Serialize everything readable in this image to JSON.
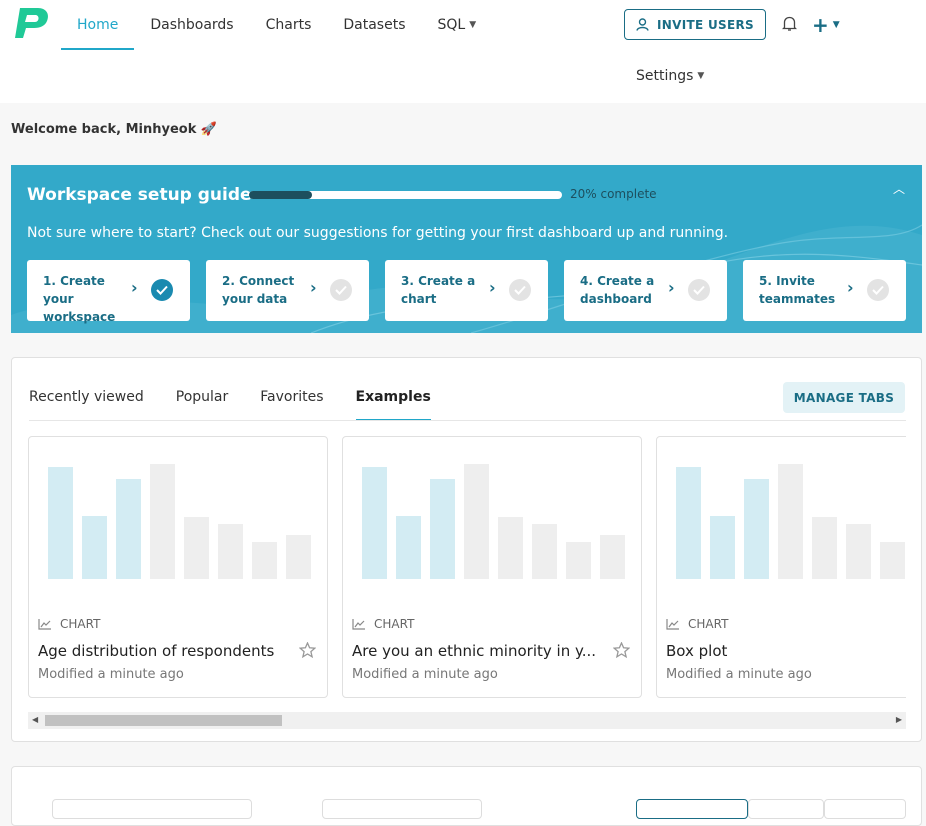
{
  "colors": {
    "accent": "#20a7c9",
    "primary_dark": "#1a6d85",
    "guide_bg": "#33a9c9"
  },
  "nav": {
    "items": [
      {
        "label": "Home",
        "active": true
      },
      {
        "label": "Dashboards"
      },
      {
        "label": "Charts"
      },
      {
        "label": "Datasets"
      },
      {
        "label": "SQL"
      }
    ]
  },
  "header": {
    "invite_label": "INVITE USERS",
    "settings_label": "Settings",
    "plus_label": "+"
  },
  "welcome": "Welcome back, Minhyeok 🚀",
  "guide": {
    "title": "Workspace setup guide",
    "progress": 0.2,
    "progress_label": "20% complete",
    "subtitle": "Not sure where to start? Check out our suggestions for getting your first dashboard up and running.",
    "steps": [
      {
        "label": "1. Create your workspace",
        "done": true
      },
      {
        "label": "2. Connect your data",
        "done": false
      },
      {
        "label": "3. Create a chart",
        "done": false
      },
      {
        "label": "4. Create a dashboard",
        "done": false
      },
      {
        "label": "5. Invite teammates",
        "done": false
      }
    ]
  },
  "tabs": {
    "items": [
      "Recently viewed",
      "Popular",
      "Favorites",
      "Examples"
    ],
    "active": "Examples",
    "manage_label": "MANAGE TABS"
  },
  "cards": [
    {
      "type": "CHART",
      "title": "Age distribution of respondents",
      "modified": "Modified a minute ago"
    },
    {
      "type": "CHART",
      "title": "Are you an ethnic minority in y...",
      "modified": "Modified a minute ago"
    },
    {
      "type": "CHART",
      "title": "Box plot",
      "modified": "Modified a minute ago"
    }
  ]
}
